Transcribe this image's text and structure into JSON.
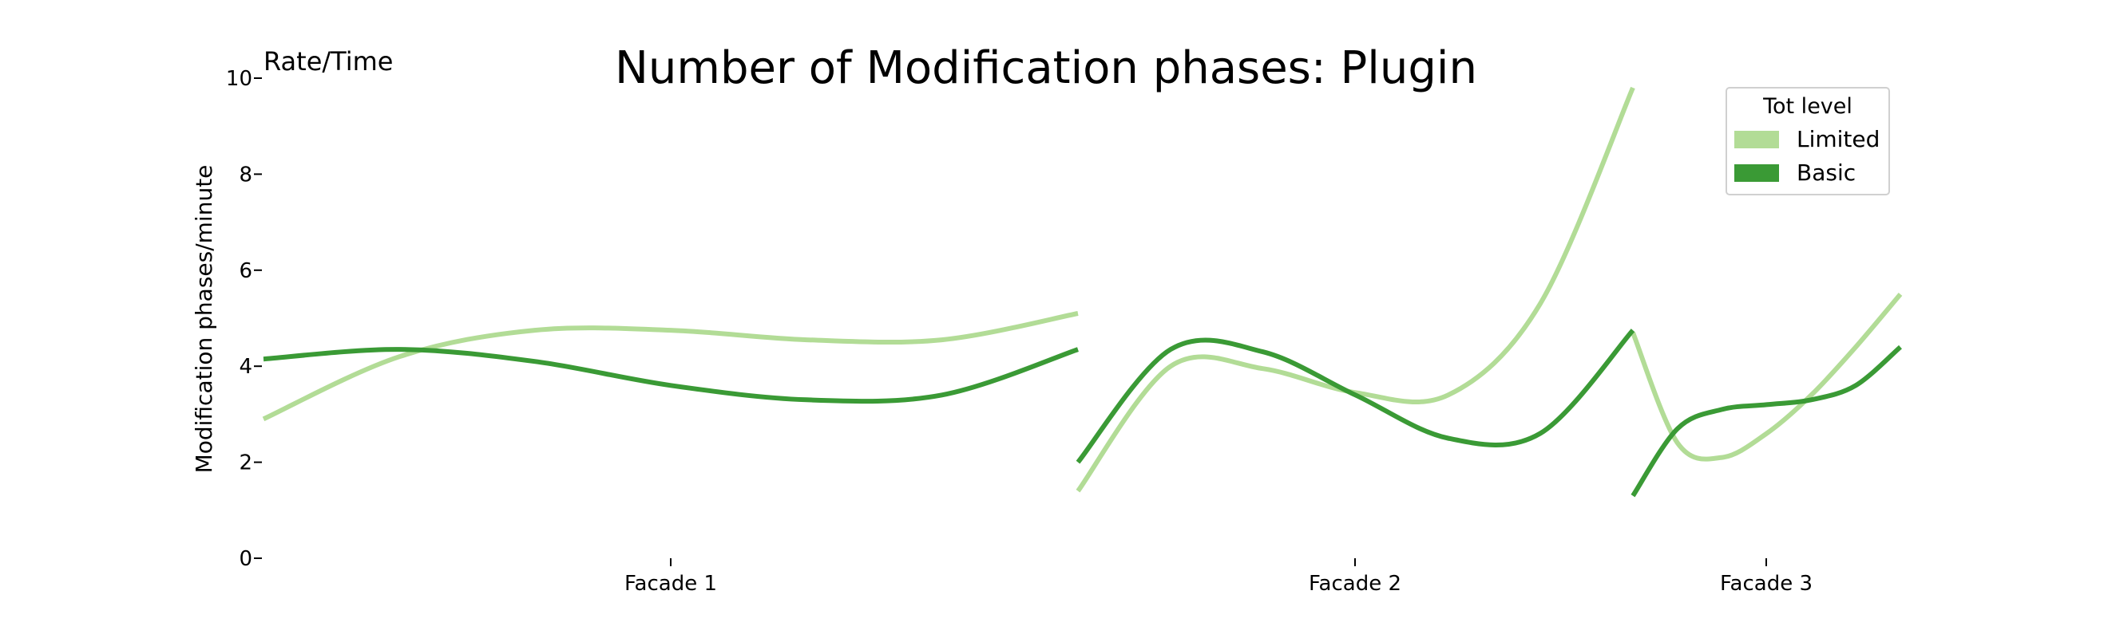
{
  "chart_data": {
    "type": "line",
    "title": "Number of Modification phases: Plugin",
    "corner_label": "Rate/Time",
    "ylabel": "Modification phases/minute",
    "ylim": [
      0,
      10
    ],
    "yticks": [
      0,
      2,
      4,
      6,
      8,
      10
    ],
    "categories": [
      "Facade 1",
      "Facade 2",
      "Facade 3"
    ],
    "grid": false,
    "legend": {
      "title": "Tot level",
      "position": "top-right"
    },
    "series": [
      {
        "name": "Limited",
        "color": "#b2dc96",
        "segments": [
          {
            "x": [
              0.0,
              0.167,
              0.333,
              0.5,
              0.667,
              0.833,
              1.0
            ],
            "y": [
              2.9,
              4.2,
              4.75,
              4.75,
              4.55,
              4.55,
              5.1
            ]
          },
          {
            "x": [
              0.0,
              0.167,
              0.333,
              0.5,
              0.667,
              0.833,
              1.0
            ],
            "y": [
              1.4,
              4.0,
              3.95,
              3.45,
              3.4,
              5.3,
              9.8
            ]
          },
          {
            "x": [
              0.0,
              0.167,
              0.333,
              0.5,
              0.667,
              0.833,
              1.0
            ],
            "y": [
              4.7,
              2.4,
              2.1,
              2.6,
              3.4,
              4.4,
              5.5
            ]
          }
        ]
      },
      {
        "name": "Basic",
        "color": "#3a9a35",
        "segments": [
          {
            "x": [
              0.0,
              0.167,
              0.333,
              0.5,
              0.667,
              0.833,
              1.0
            ],
            "y": [
              4.15,
              4.35,
              4.1,
              3.6,
              3.3,
              3.4,
              4.35
            ]
          },
          {
            "x": [
              0.0,
              0.167,
              0.333,
              0.5,
              0.667,
              0.833,
              1.0
            ],
            "y": [
              2.0,
              4.35,
              4.3,
              3.4,
              2.5,
              2.6,
              4.75
            ]
          },
          {
            "x": [
              0.0,
              0.167,
              0.333,
              0.5,
              0.667,
              0.833,
              1.0
            ],
            "y": [
              1.3,
              2.7,
              3.1,
              3.2,
              3.3,
              3.6,
              4.4
            ]
          }
        ]
      }
    ]
  }
}
